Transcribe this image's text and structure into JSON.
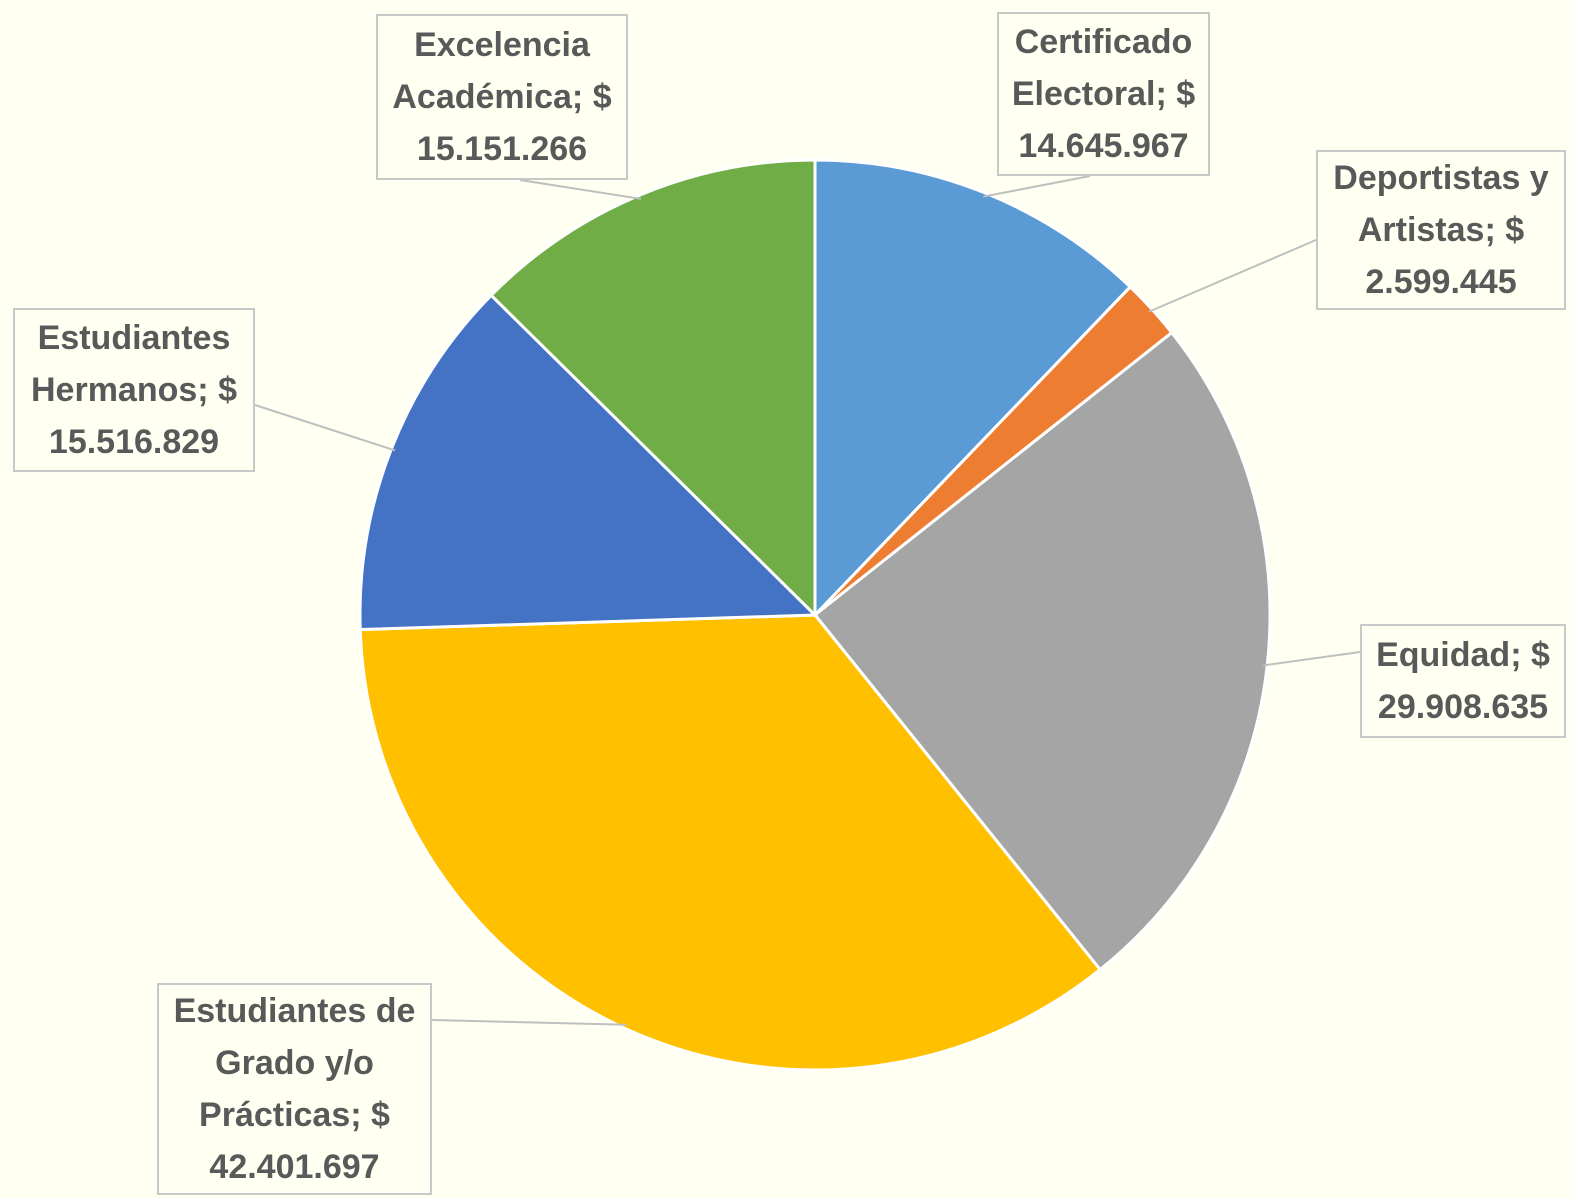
{
  "chart_data": {
    "type": "pie",
    "categories": [
      "Certificado Electoral",
      "Deportistas y Artistas",
      "Equidad",
      "Estudiantes de Grado y/o Prácticas",
      "Estudiantes Hermanos",
      "Excelencia Académica"
    ],
    "values": [
      14645967,
      2599445,
      29908635,
      42401697,
      15516829,
      15151266
    ],
    "value_labels": [
      "$ 14.645.967",
      "$ 2.599.445",
      "$ 29.908.635",
      "$ 42.401.697",
      "$ 15.516.829",
      "$ 15.151.266"
    ],
    "label_separator": ";",
    "colors": [
      "#5b9bd5",
      "#ed7d31",
      "#a5a5a5",
      "#ffc000",
      "#4472c4",
      "#70ad47"
    ]
  }
}
